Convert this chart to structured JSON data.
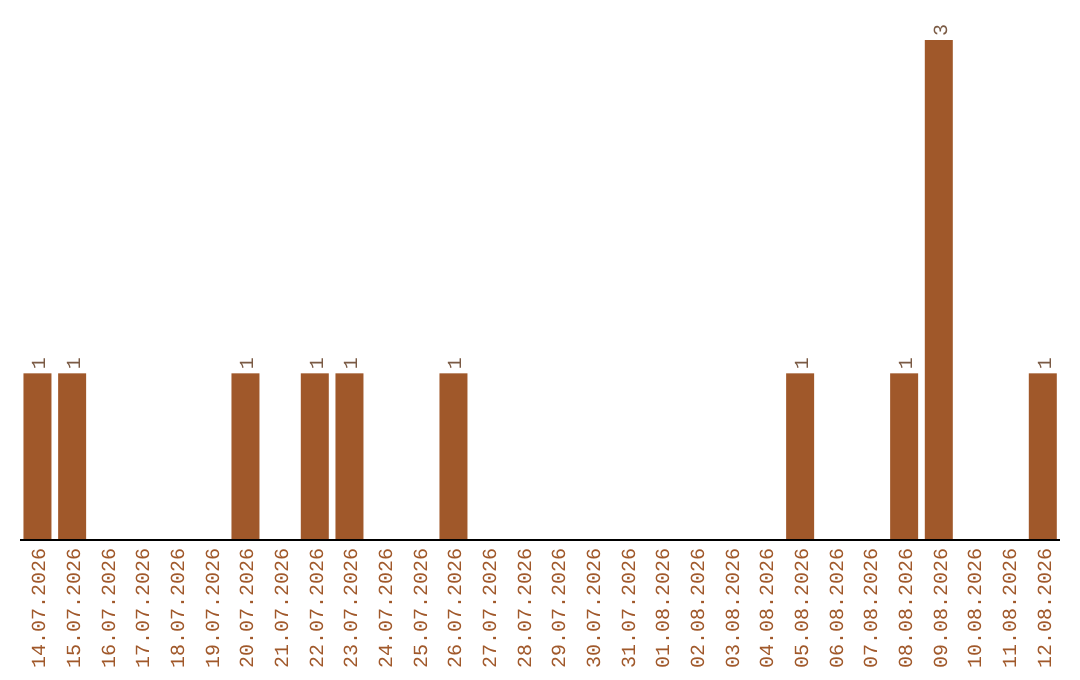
{
  "chart_data": {
    "type": "bar",
    "categories": [
      "14.07.2026",
      "15.07.2026",
      "16.07.2026",
      "17.07.2026",
      "18.07.2026",
      "19.07.2026",
      "20.07.2026",
      "21.07.2026",
      "22.07.2026",
      "23.07.2026",
      "24.07.2026",
      "25.07.2026",
      "26.07.2026",
      "27.07.2026",
      "28.07.2026",
      "29.07.2026",
      "30.07.2026",
      "31.07.2026",
      "01.08.2026",
      "02.08.2026",
      "03.08.2026",
      "04.08.2026",
      "05.08.2026",
      "06.08.2026",
      "07.08.2026",
      "08.08.2026",
      "09.08.2026",
      "10.08.2026",
      "11.08.2026",
      "12.08.2026"
    ],
    "values": [
      1,
      1,
      0,
      0,
      0,
      0,
      1,
      0,
      1,
      1,
      0,
      0,
      1,
      0,
      0,
      0,
      0,
      0,
      0,
      0,
      0,
      0,
      1,
      0,
      0,
      1,
      3,
      0,
      0,
      1
    ],
    "value_labels": [
      "1",
      "1",
      null,
      null,
      null,
      null,
      "1",
      null,
      "1",
      "1",
      null,
      null,
      "1",
      null,
      null,
      null,
      null,
      null,
      null,
      null,
      null,
      null,
      "1",
      null,
      null,
      "1",
      "3",
      null,
      null,
      "1"
    ],
    "color": "#a0582a",
    "tick_labels": "x"
  }
}
